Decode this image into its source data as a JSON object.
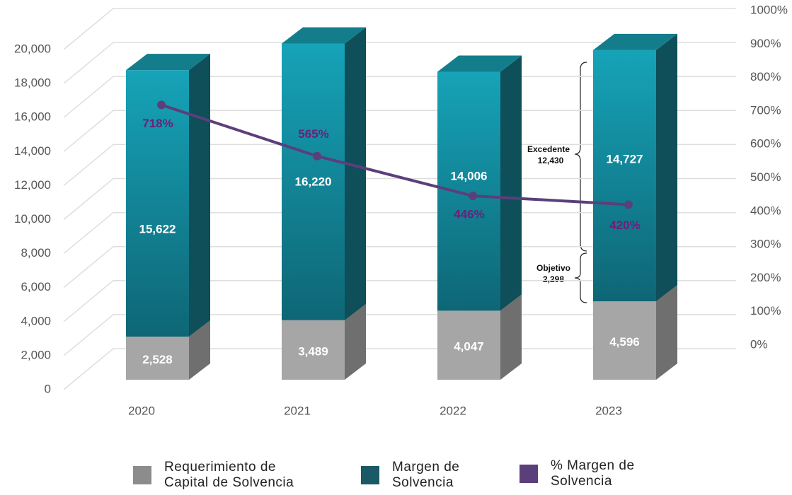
{
  "chart_data": {
    "type": "stacked_bar_line",
    "categories": [
      "2020",
      "2021",
      "2022",
      "2023"
    ],
    "series": [
      {
        "name": "Requerimiento de Capital de Solvencia",
        "color": "#a6a6a6",
        "values": [
          2528,
          3489,
          4047,
          4596
        ],
        "value_labels": [
          "2,528",
          "3,489",
          "4,047",
          "4,596"
        ]
      },
      {
        "name": "Margen de Solvencia",
        "color": "#16a3b8",
        "values": [
          15622,
          16220,
          14006,
          14727
        ],
        "value_labels": [
          "15,622",
          "16,220",
          "14,006",
          "14,727"
        ]
      },
      {
        "name": "% Margen de Solvencia",
        "color": "#5b3f7b",
        "axis": "y2",
        "values": [
          718,
          565,
          446,
          420
        ],
        "value_labels": [
          "718%",
          "565%",
          "446%",
          "420%"
        ]
      }
    ],
    "ylim": [
      0,
      20000
    ],
    "yticks": [
      0,
      {
        "value": 2000,
        "label": "2,000"
      },
      {
        "value": 4000,
        "label": "4,000"
      },
      {
        "value": 6000,
        "label": "6,000"
      },
      {
        "value": 8000,
        "label": "8,000"
      },
      {
        "value": 10000,
        "label": "10,000"
      },
      {
        "value": 12000,
        "label": "12,000"
      },
      {
        "value": 14000,
        "label": "14,000"
      },
      {
        "value": 16000,
        "label": "16,000"
      },
      {
        "value": 18000,
        "label": "18,000"
      },
      {
        "value": 20000,
        "label": "20,000"
      }
    ],
    "y2lim": [
      0,
      1000
    ],
    "y2ticks": [
      {
        "value": 0,
        "label": "0%"
      },
      {
        "value": 100,
        "label": "100%"
      },
      {
        "value": 200,
        "label": "200%"
      },
      {
        "value": 300,
        "label": "300%"
      },
      {
        "value": 400,
        "label": "400%"
      },
      {
        "value": 500,
        "label": "500%"
      },
      {
        "value": 600,
        "label": "600%"
      },
      {
        "value": 700,
        "label": "700%"
      },
      {
        "value": 800,
        "label": "800%"
      },
      {
        "value": 900,
        "label": "900%"
      },
      {
        "value": 1000,
        "label": "1000%"
      }
    ],
    "grid": true,
    "annotations": [
      {
        "title": "Excedente",
        "text": "12,430"
      },
      {
        "title": "Objetivo",
        "text": "2,298"
      }
    ]
  }
}
